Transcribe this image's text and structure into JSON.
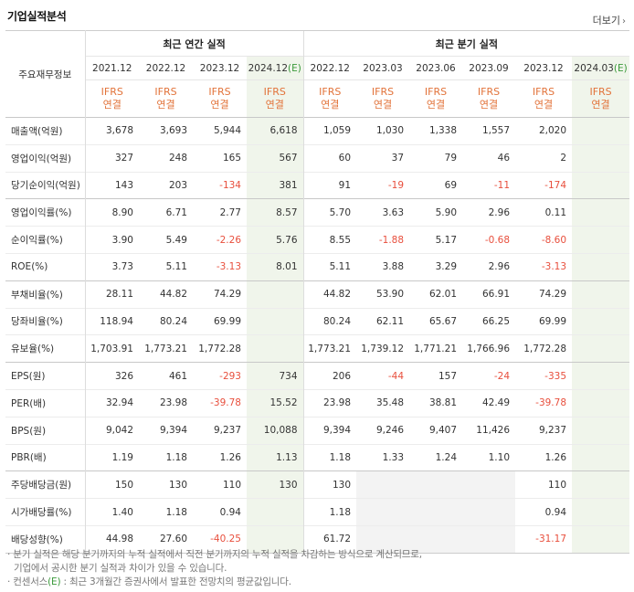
{
  "title": "기업실적분석",
  "more_label": "더보기",
  "header": {
    "corner": "주요재무정보",
    "annual_group": "최근 연간 실적",
    "quarter_group": "최근 분기 실적",
    "annual_periods": [
      "2021.12",
      "2022.12",
      "2023.12",
      "2024.12"
    ],
    "annual_est_suffix": "(E)",
    "quarter_periods": [
      "2022.12",
      "2023.03",
      "2023.06",
      "2023.09",
      "2023.12",
      "2024.03"
    ],
    "quarter_est_suffix": "(E)",
    "basis_line1": "IFRS",
    "basis_line2": "연결"
  },
  "rows": [
    {
      "label": "매출액(억원)",
      "values": [
        "3,678",
        "3,693",
        "5,944",
        "6,618",
        "1,059",
        "1,030",
        "1,338",
        "1,557",
        "2,020",
        ""
      ]
    },
    {
      "label": "영업이익(억원)",
      "values": [
        "327",
        "248",
        "165",
        "567",
        "60",
        "37",
        "79",
        "46",
        "2",
        ""
      ]
    },
    {
      "label": "당기순이익(억원)",
      "values": [
        "143",
        "203",
        "-134",
        "381",
        "91",
        "-19",
        "69",
        "-11",
        "-174",
        ""
      ]
    },
    {
      "label": "영업이익률(%)",
      "values": [
        "8.90",
        "6.71",
        "2.77",
        "8.57",
        "5.70",
        "3.63",
        "5.90",
        "2.96",
        "0.11",
        ""
      ]
    },
    {
      "label": "순이익률(%)",
      "values": [
        "3.90",
        "5.49",
        "-2.26",
        "5.76",
        "8.55",
        "-1.88",
        "5.17",
        "-0.68",
        "-8.60",
        ""
      ]
    },
    {
      "label": "ROE(%)",
      "values": [
        "3.73",
        "5.11",
        "-3.13",
        "8.01",
        "5.11",
        "3.88",
        "3.29",
        "2.96",
        "-3.13",
        ""
      ]
    },
    {
      "label": "부채비율(%)",
      "values": [
        "28.11",
        "44.82",
        "74.29",
        "",
        "44.82",
        "53.90",
        "62.01",
        "66.91",
        "74.29",
        ""
      ]
    },
    {
      "label": "당좌비율(%)",
      "values": [
        "118.94",
        "80.24",
        "69.99",
        "",
        "80.24",
        "62.11",
        "65.67",
        "66.25",
        "69.99",
        ""
      ]
    },
    {
      "label": "유보율(%)",
      "values": [
        "1,703.91",
        "1,773.21",
        "1,772.28",
        "",
        "1,773.21",
        "1,739.12",
        "1,771.21",
        "1,766.96",
        "1,772.28",
        ""
      ]
    },
    {
      "label": "EPS(원)",
      "values": [
        "326",
        "461",
        "-293",
        "734",
        "206",
        "-44",
        "157",
        "-24",
        "-335",
        ""
      ]
    },
    {
      "label": "PER(배)",
      "values": [
        "32.94",
        "23.98",
        "-39.78",
        "15.52",
        "23.98",
        "35.48",
        "38.81",
        "42.49",
        "-39.78",
        ""
      ]
    },
    {
      "label": "BPS(원)",
      "values": [
        "9,042",
        "9,394",
        "9,237",
        "10,088",
        "9,394",
        "9,246",
        "9,407",
        "11,426",
        "9,237",
        ""
      ]
    },
    {
      "label": "PBR(배)",
      "values": [
        "1.19",
        "1.18",
        "1.26",
        "1.13",
        "1.18",
        "1.33",
        "1.24",
        "1.10",
        "1.26",
        ""
      ]
    },
    {
      "label": "주당배당금(원)",
      "values": [
        "150",
        "130",
        "110",
        "130",
        "130",
        "",
        "",
        "",
        "110",
        ""
      ]
    },
    {
      "label": "시가배당률(%)",
      "values": [
        "1.40",
        "1.18",
        "0.94",
        "",
        "1.18",
        "",
        "",
        "",
        "0.94",
        ""
      ]
    },
    {
      "label": "배당성향(%)",
      "values": [
        "44.98",
        "27.60",
        "-40.25",
        "",
        "61.72",
        "",
        "",
        "",
        "-31.17",
        ""
      ]
    }
  ],
  "notes": {
    "line1": "분기 실적은 해당 분기까지의 누적 실적에서 직전 분기까지의 누적 실적을 차감하는 방식으로 계산되므로,",
    "line2": "기업에서 공시한 분기 실적과 차이가 있을 수 있습니다.",
    "line3_prefix": "컨센서스",
    "line3_e": "(E)",
    "line3_rest": ": 최근 3개월간 증권사에서 발표한 전망치의 평균값입니다."
  },
  "colors": {
    "negative": "#e84f3d",
    "basis": "#e2733a",
    "estimate_bg": "#f0f5eb",
    "estimate_mark": "#3a9a3a"
  }
}
